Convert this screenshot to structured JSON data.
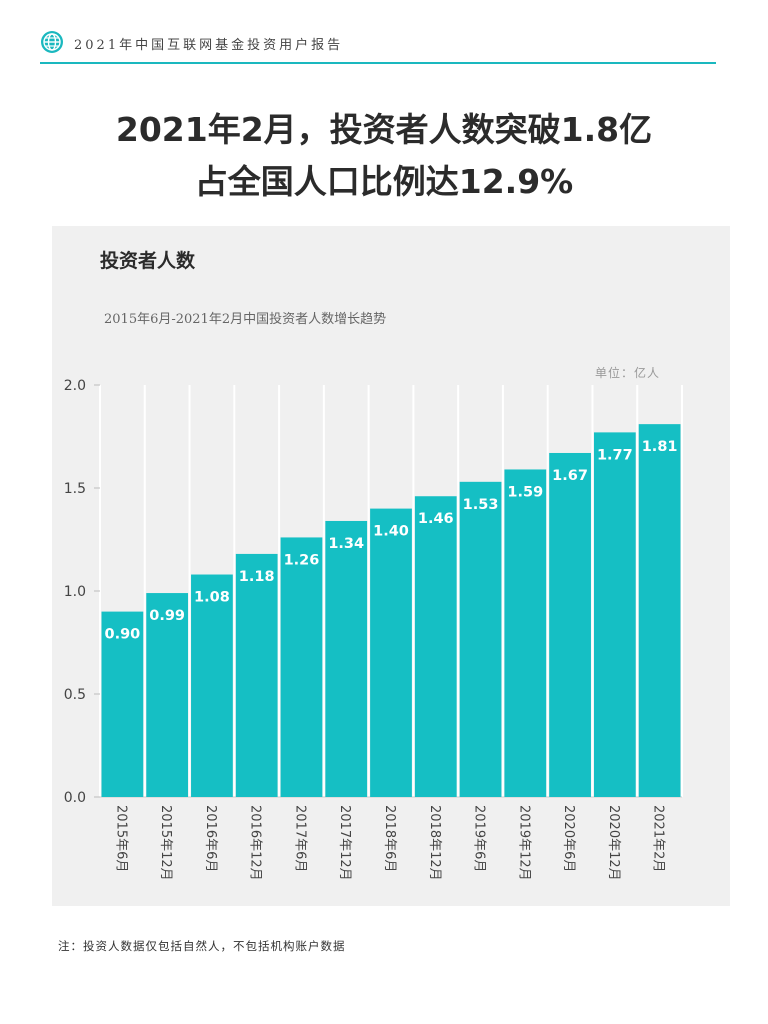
{
  "header": {
    "text": "2021年中国互联网基金投资用户报告",
    "icon": "globe-icon"
  },
  "headline": {
    "line1": "2021年2月，投资者人数突破1.8亿",
    "line2": "占全国人口比例达12.9%"
  },
  "panel": {
    "title": "投资者人数"
  },
  "chart_data": {
    "type": "bar",
    "title": "2015年6月-2021年2月中国投资者人数增长趋势",
    "unit_label": "单位：亿人",
    "categories": [
      "2015年6月",
      "2015年12月",
      "2016年6月",
      "2016年12月",
      "2017年6月",
      "2017年12月",
      "2018年6月",
      "2018年12月",
      "2019年6月",
      "2019年12月",
      "2020年6月",
      "2020年12月",
      "2021年2月"
    ],
    "values": [
      0.9,
      0.99,
      1.08,
      1.18,
      1.26,
      1.34,
      1.4,
      1.46,
      1.53,
      1.59,
      1.67,
      1.77,
      1.81
    ],
    "data_labels": [
      "0.90",
      "0.99",
      "1.08",
      "1.18",
      "1.26",
      "1.34",
      "1.40",
      "1.46",
      "1.53",
      "1.59",
      "1.67",
      "1.77",
      "1.81"
    ],
    "yticks": [
      "0.0",
      "0.5",
      "1.0",
      "1.5",
      "2.0"
    ],
    "ylim": [
      0,
      2.0
    ],
    "xlabel": "",
    "ylabel": "",
    "grid": "vertical",
    "bar_color": "#15bfc4"
  },
  "footnote": "注：投资人数据仅包括自然人，不包括机构账户数据"
}
